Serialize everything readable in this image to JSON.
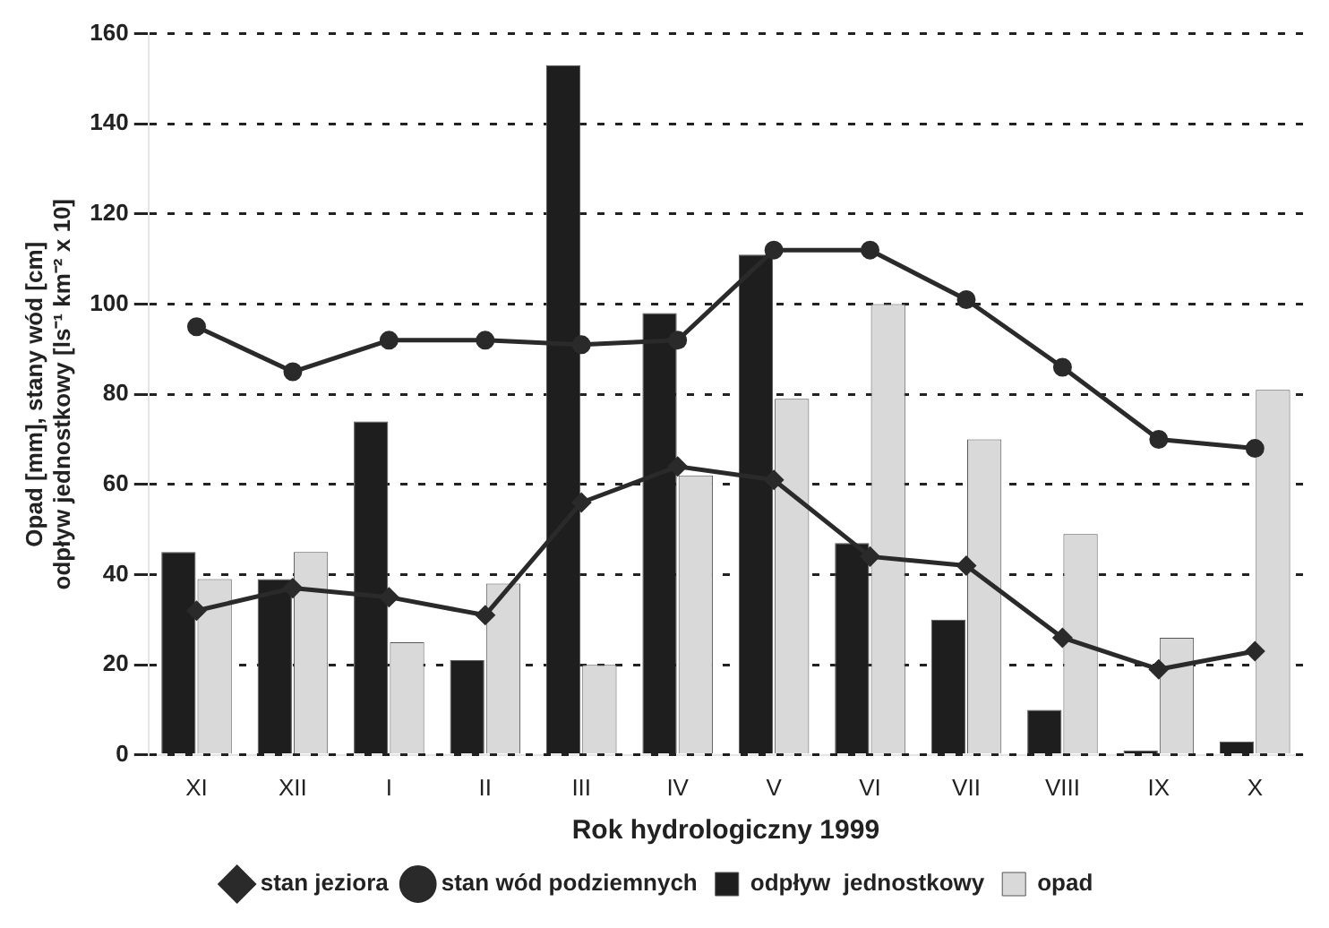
{
  "chart_data": {
    "type": "bar",
    "xlabel": "Rok hydrologiczny 1999",
    "ylabel": [
      "Opad [mm], stany wód [cm]",
      "odpływ jednostkowy [ls⁻¹ km⁻² x 10]"
    ],
    "categories": [
      "XI",
      "XII",
      "I",
      "II",
      "III",
      "IV",
      "V",
      "VI",
      "VII",
      "VIII",
      "IX",
      "X"
    ],
    "series": [
      {
        "name": "odpływ  jednostkowy",
        "color": "#1e1e1e",
        "values": [
          45,
          39,
          74,
          21,
          153,
          98,
          111,
          47,
          30,
          10,
          1,
          3
        ]
      },
      {
        "name": "opad",
        "color": "#d9d9d9",
        "values": [
          39,
          45,
          25,
          38,
          20,
          62,
          79,
          100,
          70,
          49,
          26,
          81
        ]
      },
      {
        "name": "stan jeziora",
        "type": "line",
        "marker": "diamond",
        "color": "#2a2a2a",
        "values": [
          32,
          37,
          35,
          31,
          56,
          64,
          61,
          44,
          42,
          26,
          19,
          23
        ]
      },
      {
        "name": "stan wód podziemnych",
        "type": "line",
        "marker": "circle",
        "color": "#2a2a2a",
        "values": [
          95,
          85,
          92,
          92,
          91,
          92,
          112,
          112,
          101,
          86,
          70,
          68
        ]
      }
    ],
    "ylim": [
      0,
      160
    ],
    "yticks": [
      0,
      20,
      40,
      60,
      80,
      100,
      120,
      140,
      160
    ],
    "grid": "y",
    "legend": "bottom"
  }
}
